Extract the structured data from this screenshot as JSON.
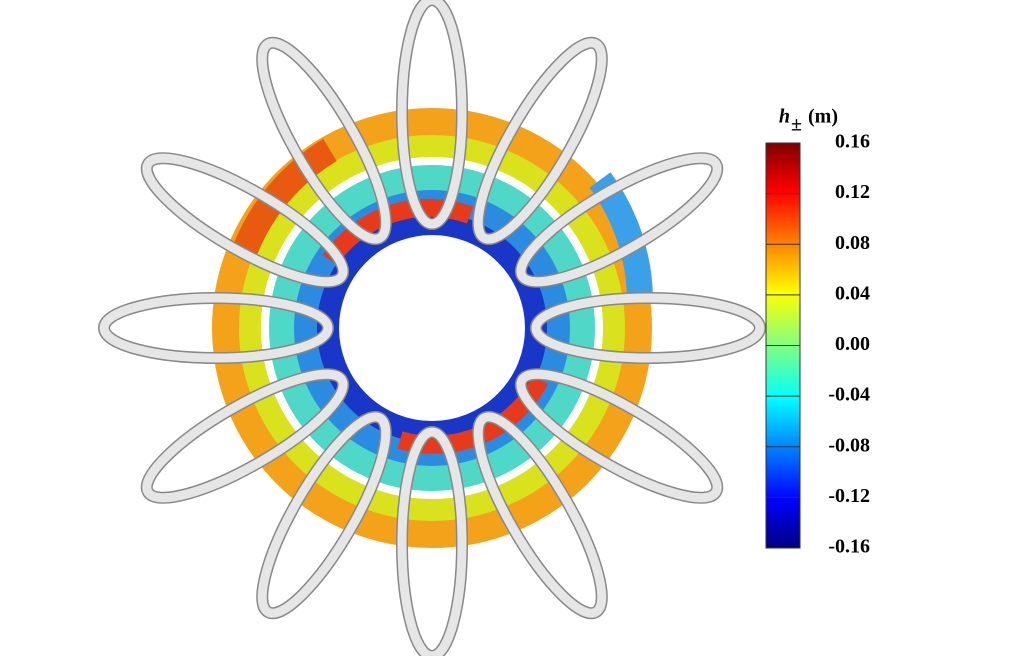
{
  "colorbar": {
    "symbol": "h",
    "subscript": "±",
    "unit": "(m)",
    "range": [
      -0.16,
      0.16
    ],
    "ticks": [
      {
        "value": 0.16,
        "label": "0.16"
      },
      {
        "value": 0.12,
        "label": "0.12"
      },
      {
        "value": 0.08,
        "label": "0.08"
      },
      {
        "value": 0.04,
        "label": "0.04"
      },
      {
        "value": 0,
        "label": "0.00"
      },
      {
        "value": -0.04,
        "label": "-0.04"
      },
      {
        "value": -0.08,
        "label": "-0.08"
      },
      {
        "value": -0.12,
        "label": "-0.12"
      },
      {
        "value": -0.16,
        "label": "-0.16"
      }
    ]
  }
}
